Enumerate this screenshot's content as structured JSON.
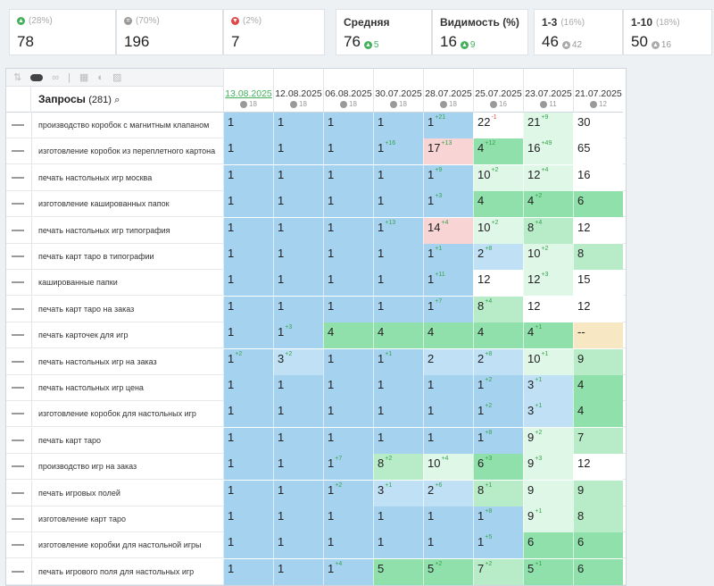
{
  "summary": {
    "top3": {
      "pct": "(28%)",
      "value": "78"
    },
    "same": {
      "pct": "(70%)",
      "value": "196"
    },
    "down": {
      "pct": "(2%)",
      "value": "7"
    },
    "avg": {
      "label": "Средняя",
      "value": "76",
      "delta": "5"
    },
    "vis": {
      "label": "Видимость (%)",
      "value": "16",
      "delta": "9"
    },
    "r13": {
      "label": "1-3",
      "pct": "(16%)",
      "value": "46",
      "delta": "42"
    },
    "r110": {
      "label": "1-10",
      "pct": "(18%)",
      "value": "50",
      "delta": "16"
    }
  },
  "table": {
    "title": "Запросы",
    "count": "(281)",
    "dates": [
      {
        "date": "13.08.2025",
        "sub": "18"
      },
      {
        "date": "12.08.2025",
        "sub": "18"
      },
      {
        "date": "06.08.2025",
        "sub": "18"
      },
      {
        "date": "30.07.2025",
        "sub": "18"
      },
      {
        "date": "28.07.2025",
        "sub": "18"
      },
      {
        "date": "25.07.2025",
        "sub": "16"
      },
      {
        "date": "23.07.2025",
        "sub": "11"
      },
      {
        "date": "21.07.2025",
        "sub": "12"
      }
    ],
    "rows": [
      {
        "q": "производство коробок с магнитным клапаном",
        "cells": [
          [
            "1",
            "",
            "b1"
          ],
          [
            "1",
            "",
            "b1"
          ],
          [
            "1",
            "",
            "b1"
          ],
          [
            "1",
            "",
            "b1"
          ],
          [
            "1",
            "+21",
            "b1"
          ],
          [
            "22",
            "-1",
            "wh"
          ],
          [
            "21",
            "+9",
            "gg3"
          ],
          [
            "30",
            "",
            "wh"
          ]
        ]
      },
      {
        "q": "изготовление коробок из переплетного картона",
        "cells": [
          [
            "1",
            "",
            "b1"
          ],
          [
            "1",
            "",
            "b1"
          ],
          [
            "1",
            "",
            "b1"
          ],
          [
            "1",
            "+16",
            "b1"
          ],
          [
            "17",
            "+13",
            "rd"
          ],
          [
            "4",
            "+12",
            "gg1"
          ],
          [
            "16",
            "+49",
            "gg3"
          ],
          [
            "65",
            "",
            "wh"
          ]
        ]
      },
      {
        "q": "печать настольных игр москва",
        "cells": [
          [
            "1",
            "",
            "b1"
          ],
          [
            "1",
            "",
            "b1"
          ],
          [
            "1",
            "",
            "b1"
          ],
          [
            "1",
            "",
            "b1"
          ],
          [
            "1",
            "+9",
            "b1"
          ],
          [
            "10",
            "+2",
            "gg3"
          ],
          [
            "12",
            "+4",
            "gg3"
          ],
          [
            "16",
            "",
            "wh"
          ]
        ]
      },
      {
        "q": "изготовление кашированных папок",
        "cells": [
          [
            "1",
            "",
            "b1"
          ],
          [
            "1",
            "",
            "b1"
          ],
          [
            "1",
            "",
            "b1"
          ],
          [
            "1",
            "",
            "b1"
          ],
          [
            "1",
            "+3",
            "b1"
          ],
          [
            "4",
            "",
            "gg1"
          ],
          [
            "4",
            "+2",
            "gg1"
          ],
          [
            "6",
            "",
            "gg1"
          ]
        ]
      },
      {
        "q": "печать настольных игр типография",
        "cells": [
          [
            "1",
            "",
            "b1"
          ],
          [
            "1",
            "",
            "b1"
          ],
          [
            "1",
            "",
            "b1"
          ],
          [
            "1",
            "+13",
            "b1"
          ],
          [
            "14",
            "+4",
            "rd"
          ],
          [
            "10",
            "+2",
            "gg3"
          ],
          [
            "8",
            "+4",
            "gg2"
          ],
          [
            "12",
            "",
            "wh"
          ]
        ]
      },
      {
        "q": "печать карт таро в типографии",
        "cells": [
          [
            "1",
            "",
            "b1"
          ],
          [
            "1",
            "",
            "b1"
          ],
          [
            "1",
            "",
            "b1"
          ],
          [
            "1",
            "",
            "b1"
          ],
          [
            "1",
            "+1",
            "b1"
          ],
          [
            "2",
            "+8",
            "b2"
          ],
          [
            "10",
            "+2",
            "gg3"
          ],
          [
            "8",
            "",
            "gg2"
          ]
        ]
      },
      {
        "q": "кашированные папки",
        "cells": [
          [
            "1",
            "",
            "b1"
          ],
          [
            "1",
            "",
            "b1"
          ],
          [
            "1",
            "",
            "b1"
          ],
          [
            "1",
            "",
            "b1"
          ],
          [
            "1",
            "+11",
            "b1"
          ],
          [
            "12",
            "",
            "wh"
          ],
          [
            "12",
            "+3",
            "gg3"
          ],
          [
            "15",
            "",
            "wh"
          ]
        ]
      },
      {
        "q": "печать карт таро на заказ",
        "cells": [
          [
            "1",
            "",
            "b1"
          ],
          [
            "1",
            "",
            "b1"
          ],
          [
            "1",
            "",
            "b1"
          ],
          [
            "1",
            "",
            "b1"
          ],
          [
            "1",
            "+7",
            "b1"
          ],
          [
            "8",
            "+4",
            "gg2"
          ],
          [
            "12",
            "",
            "wh"
          ],
          [
            "12",
            "",
            "wh"
          ]
        ]
      },
      {
        "q": "печать карточек для игр",
        "cells": [
          [
            "1",
            "",
            "b1"
          ],
          [
            "1",
            "+3",
            "b1"
          ],
          [
            "4",
            "",
            "gg1"
          ],
          [
            "4",
            "",
            "gg1"
          ],
          [
            "4",
            "",
            "gg1"
          ],
          [
            "4",
            "",
            "gg1"
          ],
          [
            "4",
            "+1",
            "gg1"
          ],
          [
            "--",
            "",
            "yl"
          ]
        ]
      },
      {
        "q": "печать настольных игр на заказ",
        "cells": [
          [
            "1",
            "+2",
            "b1"
          ],
          [
            "3",
            "+2",
            "b2"
          ],
          [
            "1",
            "",
            "b1"
          ],
          [
            "1",
            "+1",
            "b1"
          ],
          [
            "2",
            "",
            "b2"
          ],
          [
            "2",
            "+8",
            "b2"
          ],
          [
            "10",
            "+1",
            "gg3"
          ],
          [
            "9",
            "",
            "gg2"
          ]
        ]
      },
      {
        "q": "печать настольных игр цена",
        "cells": [
          [
            "1",
            "",
            "b1"
          ],
          [
            "1",
            "",
            "b1"
          ],
          [
            "1",
            "",
            "b1"
          ],
          [
            "1",
            "",
            "b1"
          ],
          [
            "1",
            "",
            "b1"
          ],
          [
            "1",
            "+2",
            "b1"
          ],
          [
            "3",
            "+1",
            "b2"
          ],
          [
            "4",
            "",
            "gg1"
          ]
        ]
      },
      {
        "q": "изготовление коробок для настольных игр",
        "cells": [
          [
            "1",
            "",
            "b1"
          ],
          [
            "1",
            "",
            "b1"
          ],
          [
            "1",
            "",
            "b1"
          ],
          [
            "1",
            "",
            "b1"
          ],
          [
            "1",
            "",
            "b1"
          ],
          [
            "1",
            "+2",
            "b1"
          ],
          [
            "3",
            "+1",
            "b2"
          ],
          [
            "4",
            "",
            "gg1"
          ]
        ]
      },
      {
        "q": "печать карт таро",
        "cells": [
          [
            "1",
            "",
            "b1"
          ],
          [
            "1",
            "",
            "b1"
          ],
          [
            "1",
            "",
            "b1"
          ],
          [
            "1",
            "",
            "b1"
          ],
          [
            "1",
            "",
            "b1"
          ],
          [
            "1",
            "+8",
            "b1"
          ],
          [
            "9",
            "+2",
            "gg3"
          ],
          [
            "7",
            "",
            "gg2"
          ]
        ]
      },
      {
        "q": "производство игр на заказ",
        "cells": [
          [
            "1",
            "",
            "b1"
          ],
          [
            "1",
            "",
            "b1"
          ],
          [
            "1",
            "+7",
            "b1"
          ],
          [
            "8",
            "+2",
            "gg2"
          ],
          [
            "10",
            "+4",
            "gg3"
          ],
          [
            "6",
            "+3",
            "gg1"
          ],
          [
            "9",
            "+3",
            "gg3"
          ],
          [
            "12",
            "",
            "wh"
          ]
        ]
      },
      {
        "q": "печать игровых полей",
        "cells": [
          [
            "1",
            "",
            "b1"
          ],
          [
            "1",
            "",
            "b1"
          ],
          [
            "1",
            "+2",
            "b1"
          ],
          [
            "3",
            "+1",
            "b2"
          ],
          [
            "2",
            "+6",
            "b2"
          ],
          [
            "8",
            "+1",
            "gg2"
          ],
          [
            "9",
            "",
            "gg3"
          ],
          [
            "9",
            "",
            "gg2"
          ]
        ]
      },
      {
        "q": "изготовление карт таро",
        "cells": [
          [
            "1",
            "",
            "b1"
          ],
          [
            "1",
            "",
            "b1"
          ],
          [
            "1",
            "",
            "b1"
          ],
          [
            "1",
            "",
            "b1"
          ],
          [
            "1",
            "",
            "b1"
          ],
          [
            "1",
            "+8",
            "b1"
          ],
          [
            "9",
            "+1",
            "gg3"
          ],
          [
            "8",
            "",
            "gg2"
          ]
        ]
      },
      {
        "q": "изготовление коробки для настольной игры",
        "cells": [
          [
            "1",
            "",
            "b1"
          ],
          [
            "1",
            "",
            "b1"
          ],
          [
            "1",
            "",
            "b1"
          ],
          [
            "1",
            "",
            "b1"
          ],
          [
            "1",
            "",
            "b1"
          ],
          [
            "1",
            "+5",
            "b1"
          ],
          [
            "6",
            "",
            "gg1"
          ],
          [
            "6",
            "",
            "gg1"
          ]
        ]
      },
      {
        "q": "печать игрового поля для настольных игр",
        "cells": [
          [
            "1",
            "",
            "b1"
          ],
          [
            "1",
            "",
            "b1"
          ],
          [
            "1",
            "+4",
            "b1"
          ],
          [
            "5",
            "",
            "gg1"
          ],
          [
            "5",
            "+2",
            "gg1"
          ],
          [
            "7",
            "+2",
            "gg2"
          ],
          [
            "5",
            "+1",
            "gg1"
          ],
          [
            "6",
            "",
            "gg1"
          ]
        ]
      }
    ]
  }
}
